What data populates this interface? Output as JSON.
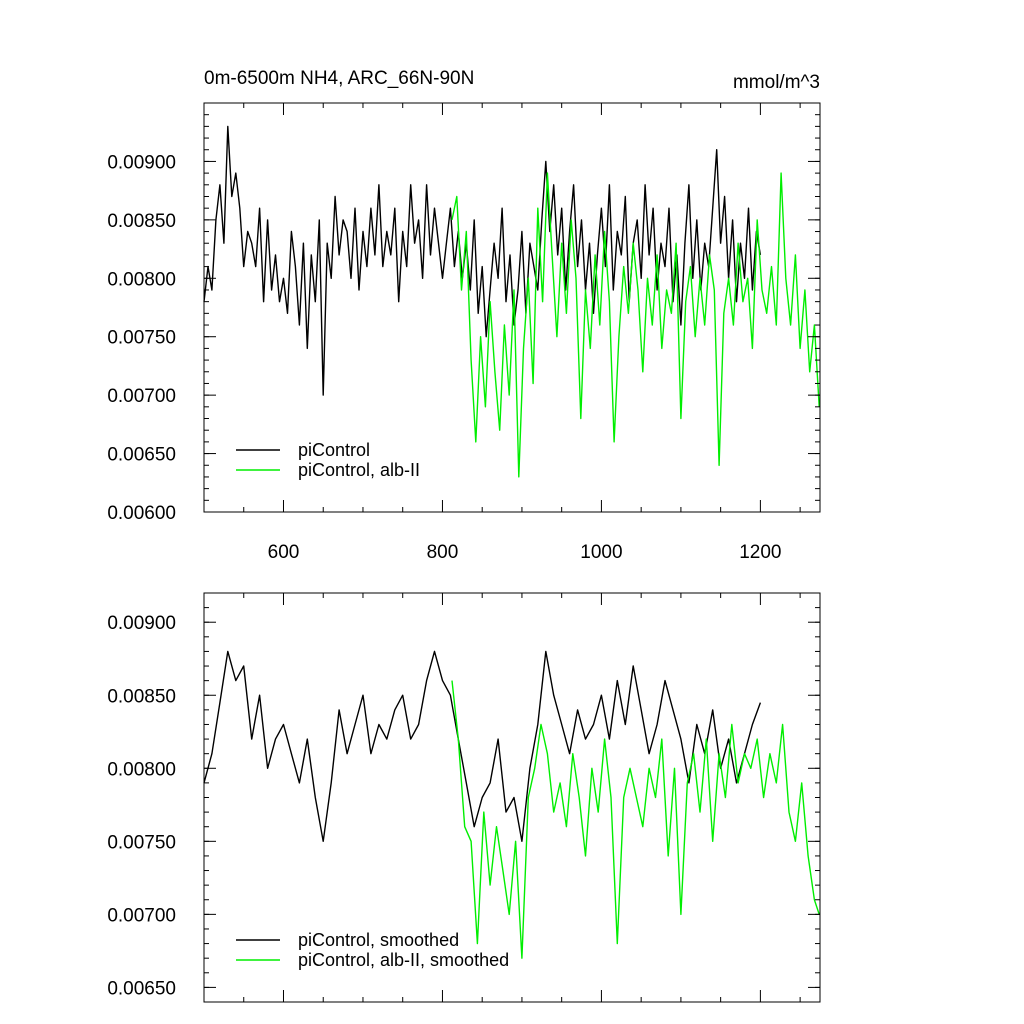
{
  "chart_data": [
    {
      "type": "line",
      "title": "0m-6500m NH4, ARC_66N-90N",
      "units": "mmol/m^3",
      "xlabel": "",
      "ylabel": "",
      "xlim": [
        500,
        1275
      ],
      "ylim": [
        0.006,
        0.0095
      ],
      "xticks": [
        600,
        800,
        1000,
        1200
      ],
      "xtick_labels": [
        "600",
        "800",
        "1000",
        "1200"
      ],
      "yticks": [
        0.006,
        0.0065,
        0.007,
        0.0075,
        0.008,
        0.0085,
        0.009
      ],
      "ytick_labels": [
        "0.00600",
        "0.00650",
        "0.00700",
        "0.00750",
        "0.00800",
        "0.00850",
        "0.00900"
      ],
      "grid": false,
      "legend_position": "bottom-left",
      "series": [
        {
          "name": "piControl",
          "color": "#000000",
          "x": [
            500,
            505,
            510,
            515,
            520,
            525,
            530,
            535,
            540,
            545,
            550,
            555,
            560,
            565,
            570,
            575,
            580,
            585,
            590,
            595,
            600,
            605,
            610,
            615,
            620,
            625,
            630,
            635,
            640,
            645,
            650,
            655,
            660,
            665,
            670,
            675,
            680,
            685,
            690,
            695,
            700,
            705,
            710,
            715,
            720,
            725,
            730,
            735,
            740,
            745,
            750,
            755,
            760,
            765,
            770,
            775,
            780,
            785,
            790,
            795,
            800,
            805,
            810,
            815,
            820,
            825,
            830,
            835,
            840,
            845,
            850,
            855,
            860,
            865,
            870,
            875,
            880,
            885,
            890,
            895,
            900,
            905,
            910,
            915,
            920,
            925,
            930,
            935,
            940,
            945,
            950,
            955,
            960,
            965,
            970,
            975,
            980,
            985,
            990,
            995,
            1000,
            1005,
            1010,
            1015,
            1020,
            1025,
            1030,
            1035,
            1040,
            1045,
            1050,
            1055,
            1060,
            1065,
            1070,
            1075,
            1080,
            1085,
            1090,
            1095,
            1100,
            1105,
            1110,
            1115,
            1120,
            1125,
            1130,
            1135,
            1140,
            1145,
            1150,
            1155,
            1160,
            1165,
            1170,
            1175,
            1180,
            1185,
            1190,
            1195,
            1200
          ],
          "y": [
            0.0078,
            0.0081,
            0.0079,
            0.0085,
            0.0088,
            0.0083,
            0.0093,
            0.0087,
            0.0089,
            0.0086,
            0.0081,
            0.0084,
            0.0083,
            0.0081,
            0.0086,
            0.0078,
            0.0085,
            0.0079,
            0.0082,
            0.0078,
            0.008,
            0.0077,
            0.0084,
            0.0081,
            0.0076,
            0.0083,
            0.0074,
            0.0082,
            0.0078,
            0.0085,
            0.007,
            0.0083,
            0.008,
            0.0087,
            0.0082,
            0.0085,
            0.0084,
            0.008,
            0.0086,
            0.0079,
            0.0084,
            0.0081,
            0.0086,
            0.0082,
            0.0088,
            0.0081,
            0.0084,
            0.0082,
            0.0086,
            0.0078,
            0.0084,
            0.0081,
            0.0088,
            0.0083,
            0.0085,
            0.008,
            0.0088,
            0.0082,
            0.0086,
            0.0083,
            0.008,
            0.0083,
            0.0086,
            0.0081,
            0.0084,
            0.008,
            0.0083,
            0.0079,
            0.0085,
            0.0077,
            0.0081,
            0.0075,
            0.0079,
            0.0083,
            0.008,
            0.0086,
            0.0078,
            0.0082,
            0.0076,
            0.0079,
            0.0084,
            0.0077,
            0.0083,
            0.0081,
            0.0079,
            0.0085,
            0.009,
            0.0084,
            0.0088,
            0.0082,
            0.0086,
            0.0079,
            0.0084,
            0.0088,
            0.0081,
            0.0085,
            0.0079,
            0.0083,
            0.0077,
            0.0082,
            0.0086,
            0.0081,
            0.0088,
            0.0079,
            0.0084,
            0.0082,
            0.0087,
            0.0078,
            0.0083,
            0.0085,
            0.008,
            0.0088,
            0.0082,
            0.0086,
            0.0079,
            0.0083,
            0.0081,
            0.0086,
            0.0078,
            0.0082,
            0.0076,
            0.0083,
            0.0088,
            0.008,
            0.0085,
            0.0079,
            0.0083,
            0.0081,
            0.0086,
            0.0091,
            0.0083,
            0.0087,
            0.008,
            0.0085,
            0.0078,
            0.0083,
            0.008,
            0.0086,
            0.0079,
            0.0084,
            0.0082
          ]
        },
        {
          "name": "piControl, alb-II",
          "color": "#00ee00",
          "x": [
            812,
            818,
            824,
            830,
            836,
            842,
            848,
            854,
            860,
            866,
            872,
            878,
            884,
            890,
            896,
            902,
            908,
            914,
            920,
            926,
            932,
            938,
            944,
            950,
            956,
            962,
            968,
            974,
            980,
            986,
            992,
            998,
            1004,
            1010,
            1016,
            1022,
            1028,
            1034,
            1040,
            1046,
            1052,
            1058,
            1064,
            1070,
            1076,
            1082,
            1088,
            1094,
            1100,
            1106,
            1112,
            1118,
            1124,
            1130,
            1136,
            1142,
            1148,
            1154,
            1160,
            1166,
            1172,
            1178,
            1184,
            1190,
            1196,
            1202,
            1208,
            1214,
            1220,
            1226,
            1232,
            1238,
            1244,
            1250,
            1256,
            1262,
            1268,
            1274
          ],
          "y": [
            0.0085,
            0.0087,
            0.0079,
            0.0084,
            0.0073,
            0.0066,
            0.0075,
            0.0069,
            0.0078,
            0.0072,
            0.0067,
            0.0076,
            0.007,
            0.0079,
            0.0063,
            0.0074,
            0.008,
            0.0071,
            0.0086,
            0.0078,
            0.0089,
            0.0082,
            0.0075,
            0.0083,
            0.0077,
            0.0085,
            0.008,
            0.0068,
            0.0079,
            0.0074,
            0.0082,
            0.0076,
            0.0084,
            0.0078,
            0.0066,
            0.0075,
            0.0081,
            0.0077,
            0.0083,
            0.0079,
            0.0072,
            0.008,
            0.0076,
            0.0082,
            0.0074,
            0.0079,
            0.0077,
            0.0083,
            0.0068,
            0.0078,
            0.0081,
            0.0075,
            0.008,
            0.0076,
            0.0082,
            0.0079,
            0.0064,
            0.0077,
            0.008,
            0.0076,
            0.0083,
            0.0078,
            0.008,
            0.0074,
            0.0085,
            0.0079,
            0.0077,
            0.0081,
            0.0076,
            0.0089,
            0.008,
            0.0076,
            0.0082,
            0.0074,
            0.0079,
            0.0072,
            0.0076,
            0.0069
          ]
        }
      ]
    },
    {
      "type": "line",
      "title": "",
      "xlabel": "",
      "ylabel": "",
      "xlim": [
        500,
        1275
      ],
      "ylim": [
        0.0064,
        0.0092
      ],
      "xticks": [
        600,
        800,
        1000,
        1200
      ],
      "yticks": [
        0.0065,
        0.007,
        0.0075,
        0.008,
        0.0085,
        0.009
      ],
      "ytick_labels": [
        "0.00650",
        "0.00700",
        "0.00750",
        "0.00800",
        "0.00850",
        "0.00900"
      ],
      "grid": false,
      "legend_position": "bottom-left",
      "series": [
        {
          "name": "piControl, smoothed",
          "color": "#000000",
          "x": [
            500,
            510,
            520,
            530,
            540,
            550,
            560,
            570,
            580,
            590,
            600,
            610,
            620,
            630,
            640,
            650,
            660,
            670,
            680,
            690,
            700,
            710,
            720,
            730,
            740,
            750,
            760,
            770,
            780,
            790,
            800,
            810,
            820,
            830,
            840,
            850,
            860,
            870,
            880,
            890,
            900,
            910,
            920,
            930,
            940,
            950,
            960,
            970,
            980,
            990,
            1000,
            1010,
            1020,
            1030,
            1040,
            1050,
            1060,
            1070,
            1080,
            1090,
            1100,
            1110,
            1120,
            1130,
            1140,
            1150,
            1160,
            1170,
            1180,
            1190,
            1200
          ],
          "y": [
            0.0079,
            0.0081,
            0.00845,
            0.0088,
            0.0086,
            0.0087,
            0.0082,
            0.0085,
            0.008,
            0.0082,
            0.0083,
            0.0081,
            0.0079,
            0.0082,
            0.0078,
            0.0075,
            0.0079,
            0.0084,
            0.0081,
            0.0083,
            0.0085,
            0.0081,
            0.0083,
            0.0082,
            0.0084,
            0.0085,
            0.0082,
            0.0083,
            0.0086,
            0.0088,
            0.0086,
            0.0085,
            0.0082,
            0.0079,
            0.0076,
            0.0078,
            0.0079,
            0.0082,
            0.0077,
            0.0078,
            0.0075,
            0.008,
            0.0083,
            0.0088,
            0.0085,
            0.0083,
            0.0081,
            0.0084,
            0.0082,
            0.0083,
            0.0085,
            0.0082,
            0.0086,
            0.0083,
            0.0087,
            0.0084,
            0.0081,
            0.0083,
            0.0086,
            0.0084,
            0.0082,
            0.0079,
            0.0083,
            0.0081,
            0.0084,
            0.008,
            0.0082,
            0.0079,
            0.0081,
            0.0083,
            0.00845
          ]
        },
        {
          "name": "piControl, alb-II, smoothed",
          "color": "#00ee00",
          "x": [
            812,
            820,
            828,
            836,
            844,
            852,
            860,
            868,
            876,
            884,
            892,
            900,
            908,
            916,
            924,
            932,
            940,
            948,
            956,
            964,
            972,
            980,
            988,
            996,
            1004,
            1012,
            1020,
            1028,
            1036,
            1044,
            1052,
            1060,
            1068,
            1076,
            1084,
            1092,
            1100,
            1108,
            1116,
            1124,
            1132,
            1140,
            1148,
            1156,
            1164,
            1172,
            1180,
            1188,
            1196,
            1204,
            1212,
            1220,
            1228,
            1236,
            1244,
            1252,
            1260,
            1268,
            1274
          ],
          "y": [
            0.0086,
            0.0082,
            0.0076,
            0.0075,
            0.0068,
            0.0077,
            0.0072,
            0.0076,
            0.0073,
            0.007,
            0.0075,
            0.0067,
            0.0078,
            0.008,
            0.0083,
            0.0081,
            0.0077,
            0.0079,
            0.0076,
            0.0081,
            0.0078,
            0.0074,
            0.008,
            0.0077,
            0.0082,
            0.0078,
            0.0068,
            0.0078,
            0.008,
            0.0078,
            0.0076,
            0.008,
            0.0078,
            0.0082,
            0.0074,
            0.008,
            0.007,
            0.0079,
            0.0081,
            0.0077,
            0.0082,
            0.0075,
            0.0081,
            0.0078,
            0.0083,
            0.0079,
            0.0081,
            0.008,
            0.0082,
            0.0078,
            0.0081,
            0.0079,
            0.0083,
            0.0077,
            0.0075,
            0.0079,
            0.0074,
            0.0071,
            0.007
          ]
        }
      ]
    }
  ]
}
